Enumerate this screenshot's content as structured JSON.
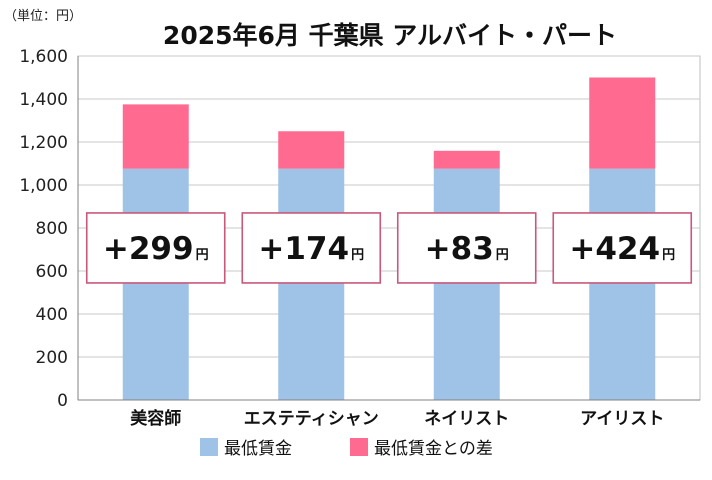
{
  "chart_data": {
    "type": "bar",
    "stacked": true,
    "title": "2025年6月 千葉県 アルバイト・パート",
    "unit_label": "（単位：円）",
    "categories": [
      "美容師",
      "エステティシャン",
      "ネイリスト",
      "アイリスト"
    ],
    "series": [
      {
        "name": "最低賃金",
        "color": "#9ec3e6",
        "values": [
          1076,
          1076,
          1076,
          1076
        ]
      },
      {
        "name": "最低賃金との差",
        "color": "#ff6a90",
        "values": [
          299,
          174,
          83,
          424
        ]
      }
    ],
    "annotations": [
      {
        "text": "+299",
        "suffix": "円"
      },
      {
        "text": "+174",
        "suffix": "円"
      },
      {
        "text": "+83",
        "suffix": "円"
      },
      {
        "text": "+424",
        "suffix": "円"
      }
    ],
    "ylim": [
      0,
      1600
    ],
    "yticks": [
      0,
      200,
      400,
      600,
      800,
      1000,
      1200,
      1400,
      1600
    ],
    "ytick_labels": [
      "0",
      "200",
      "400",
      "600",
      "800",
      "1,000",
      "1,200",
      "1,400",
      "1,600"
    ],
    "grid": true,
    "legend_position": "bottom"
  }
}
